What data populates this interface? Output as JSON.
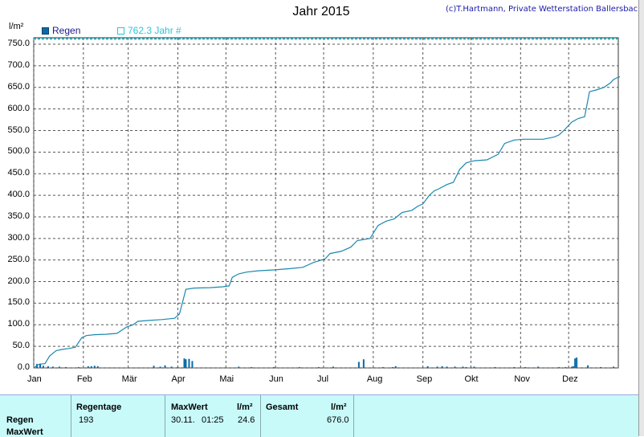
{
  "header": {
    "title": "Jahr 2015",
    "copyright": "(c)T.Hartmann, Private Wetterstation Ballersbach",
    "unit": "l/m²"
  },
  "legend": {
    "regen": "Regen",
    "jahr": "762.3 Jahr #"
  },
  "colors": {
    "cumulative": "#1a88b0",
    "bars": "#0a6aa8",
    "target_line": "#2ec4d4",
    "grid": "#555555"
  },
  "chart_data": {
    "type": "bar+line",
    "title": "Jahr 2015",
    "ylabel": "l/m²",
    "ylim": [
      0,
      765
    ],
    "yticks": [
      "0.0",
      "50.0",
      "100.0",
      "150.0",
      "200.0",
      "250.0",
      "300.0",
      "350.0",
      "400.0",
      "450.0",
      "500.0",
      "550.0",
      "600.0",
      "650.0",
      "700.0",
      "750.0"
    ],
    "xticks": [
      "Jan",
      "Feb",
      "Mär",
      "Apr",
      "Mai",
      "Jun",
      "Jul",
      "Aug",
      "Sep",
      "Okt",
      "Nov",
      "Dez"
    ],
    "target_line": 762.3,
    "cumulative": {
      "name": "Regen",
      "points": [
        [
          0,
          0
        ],
        [
          3,
          8
        ],
        [
          7,
          10
        ],
        [
          10,
          28
        ],
        [
          14,
          40
        ],
        [
          18,
          43
        ],
        [
          22,
          45
        ],
        [
          26,
          48
        ],
        [
          30,
          70
        ],
        [
          33,
          75
        ],
        [
          38,
          77
        ],
        [
          45,
          78
        ],
        [
          52,
          80
        ],
        [
          58,
          95
        ],
        [
          62,
          100
        ],
        [
          65,
          108
        ],
        [
          72,
          110
        ],
        [
          80,
          112
        ],
        [
          88,
          115
        ],
        [
          91,
          125
        ],
        [
          95,
          182
        ],
        [
          100,
          185
        ],
        [
          110,
          186
        ],
        [
          118,
          188
        ],
        [
          122,
          190
        ],
        [
          124,
          210
        ],
        [
          128,
          218
        ],
        [
          133,
          222
        ],
        [
          140,
          225
        ],
        [
          150,
          227
        ],
        [
          160,
          230
        ],
        [
          168,
          233
        ],
        [
          175,
          245
        ],
        [
          178,
          248
        ],
        [
          182,
          253
        ],
        [
          185,
          265
        ],
        [
          192,
          270
        ],
        [
          198,
          280
        ],
        [
          202,
          295
        ],
        [
          210,
          300
        ],
        [
          215,
          330
        ],
        [
          220,
          340
        ],
        [
          225,
          345
        ],
        [
          230,
          360
        ],
        [
          236,
          365
        ],
        [
          240,
          375
        ],
        [
          243,
          380
        ],
        [
          247,
          400
        ],
        [
          250,
          410
        ],
        [
          253,
          415
        ],
        [
          258,
          425
        ],
        [
          262,
          430
        ],
        [
          266,
          460
        ],
        [
          270,
          475
        ],
        [
          275,
          480
        ],
        [
          283,
          482
        ],
        [
          290,
          495
        ],
        [
          294,
          520
        ],
        [
          300,
          528
        ],
        [
          306,
          530
        ],
        [
          312,
          530
        ],
        [
          318,
          530
        ],
        [
          325,
          535
        ],
        [
          328,
          540
        ],
        [
          331,
          550
        ],
        [
          336,
          570
        ],
        [
          340,
          578
        ],
        [
          344,
          582
        ],
        [
          347,
          640
        ],
        [
          352,
          645
        ],
        [
          356,
          650
        ],
        [
          360,
          660
        ],
        [
          362,
          668
        ],
        [
          364,
          672
        ],
        [
          366,
          675
        ]
      ]
    },
    "daily": {
      "name": "Regen",
      "days": [
        2,
        4,
        6,
        9,
        12,
        16,
        20,
        28,
        34,
        36,
        38,
        40,
        75,
        79,
        82,
        86,
        90,
        94,
        95,
        97,
        99,
        128,
        136,
        150,
        166,
        178,
        187,
        203,
        206,
        218,
        224,
        226,
        246,
        252,
        255,
        258,
        263,
        268,
        270,
        275,
        288,
        300,
        307,
        315,
        328,
        332,
        336,
        337,
        338,
        339,
        346,
        354,
        362
      ],
      "values": [
        9,
        10,
        5,
        4,
        3,
        3,
        2,
        2,
        4,
        4,
        5,
        4,
        5,
        3,
        6,
        3,
        2,
        22,
        20,
        21,
        16,
        3,
        2,
        2,
        2,
        2,
        3,
        14,
        20,
        2,
        2,
        4,
        4,
        3,
        4,
        3,
        3,
        3,
        2,
        3,
        2,
        2,
        2,
        3,
        2,
        2,
        3,
        4,
        22,
        24,
        6,
        2,
        3
      ]
    }
  },
  "stats": {
    "row_regen": "Regen",
    "row_maxwert": "MaxWert",
    "col_regentage": "Regentage",
    "col_maxwert": "MaxWert",
    "col_unit1": "l/m²",
    "col_gesamt": "Gesamt",
    "col_unit2": "l/m²",
    "regentage_value": "193",
    "maxwert_date": "30.11.",
    "maxwert_time": "01:25",
    "maxwert_value": "24.6",
    "gesamt_value": "676.0"
  }
}
